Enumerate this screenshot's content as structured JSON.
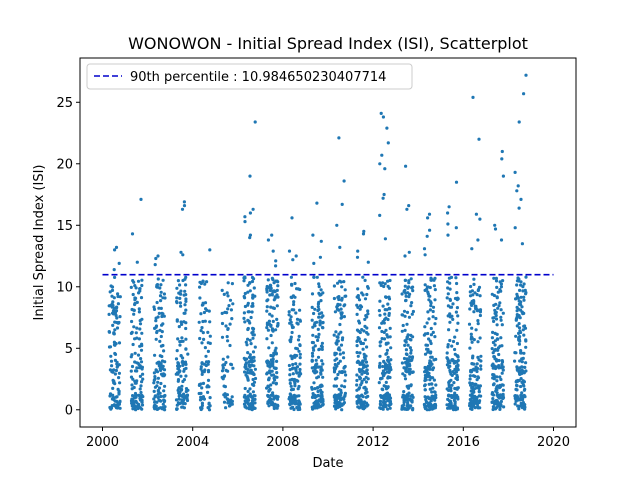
{
  "chart_data": {
    "type": "scatter",
    "title": "WONOWON - Initial Spread Index (ISI), Scatterplot",
    "xlabel": "Date",
    "ylabel": "Initial Spread Index (ISI)",
    "xlim": [
      "2000-01-01",
      "2020-01-01"
    ],
    "ylim": [
      -1.4,
      28.6
    ],
    "x_ticks": [
      "2000",
      "2004",
      "2008",
      "2012",
      "2016",
      "2020"
    ],
    "y_ticks": [
      0,
      5,
      10,
      15,
      20,
      25
    ],
    "grid": false,
    "point_color": "#1f77b4",
    "reference_line": {
      "label": "90th percentile : 10.984650230407714",
      "value": 10.984650230407714,
      "x_range": [
        "2000-01-01",
        "2020-01-01"
      ],
      "color": "#0000cc",
      "style": "dashed"
    },
    "legend": {
      "position": "top-left",
      "entries": [
        "90th percentile : 10.984650230407714"
      ]
    },
    "seasons": [
      {
        "start": "2000-04-15",
        "end": "2000-10-15",
        "n": 110,
        "high": [
          13.2,
          13.0,
          11.9,
          11.4
        ]
      },
      {
        "start": "2001-04-10",
        "end": "2001-10-15",
        "n": 125,
        "high": [
          17.1,
          14.3,
          12.0
        ]
      },
      {
        "start": "2002-04-10",
        "end": "2002-10-15",
        "n": 125,
        "high": [
          12.5,
          12.3,
          11.8
        ]
      },
      {
        "start": "2003-04-10",
        "end": "2003-10-15",
        "n": 120,
        "high": [
          16.9,
          16.6,
          16.3,
          12.8,
          12.6
        ]
      },
      {
        "start": "2004-04-15",
        "end": "2004-10-15",
        "n": 85,
        "high": [
          13.0,
          7.2
        ]
      },
      {
        "start": "2005-04-20",
        "end": "2005-10-15",
        "n": 60,
        "high": [
          8.2,
          7.9
        ]
      },
      {
        "start": "2006-04-10",
        "end": "2006-10-15",
        "n": 155,
        "high": [
          23.4,
          19.0,
          16.3,
          16.0,
          15.7,
          15.3,
          14.2,
          14.0
        ]
      },
      {
        "start": "2007-04-10",
        "end": "2007-10-15",
        "n": 150,
        "high": [
          14.2,
          13.8,
          12.9,
          12.1,
          11.7
        ]
      },
      {
        "start": "2008-04-10",
        "end": "2008-10-15",
        "n": 135,
        "high": [
          15.6,
          12.9,
          12.5,
          12.2
        ]
      },
      {
        "start": "2009-04-10",
        "end": "2009-10-15",
        "n": 150,
        "high": [
          16.8,
          14.2,
          13.7,
          12.4,
          11.9
        ]
      },
      {
        "start": "2010-04-10",
        "end": "2010-10-15",
        "n": 145,
        "high": [
          22.1,
          18.6,
          16.7,
          15.0,
          13.2
        ]
      },
      {
        "start": "2011-04-10",
        "end": "2011-10-15",
        "n": 140,
        "high": [
          14.5,
          14.3,
          12.9,
          12.4,
          12.0
        ]
      },
      {
        "start": "2012-04-10",
        "end": "2012-10-15",
        "n": 155,
        "high": [
          24.1,
          23.8,
          22.9,
          21.7,
          20.7,
          20.0,
          19.6,
          17.5,
          17.2,
          15.8,
          13.9
        ]
      },
      {
        "start": "2013-04-10",
        "end": "2013-10-15",
        "n": 145,
        "high": [
          19.8,
          16.6,
          16.3,
          12.8,
          12.5
        ]
      },
      {
        "start": "2014-04-10",
        "end": "2014-10-15",
        "n": 150,
        "high": [
          15.9,
          15.6,
          14.6,
          14.1,
          13.1,
          12.6
        ]
      },
      {
        "start": "2015-04-10",
        "end": "2015-10-15",
        "n": 150,
        "high": [
          18.5,
          16.5,
          16.0,
          15.1,
          14.8,
          14.2
        ]
      },
      {
        "start": "2016-04-10",
        "end": "2016-10-15",
        "n": 145,
        "high": [
          25.4,
          22.0,
          15.9,
          15.5,
          13.8,
          13.1
        ]
      },
      {
        "start": "2017-04-10",
        "end": "2017-10-15",
        "n": 150,
        "high": [
          21.0,
          20.4,
          19.0,
          15.0,
          14.7,
          13.8
        ]
      },
      {
        "start": "2018-04-10",
        "end": "2018-10-15",
        "n": 150,
        "high": [
          27.2,
          25.7,
          23.4,
          19.3,
          18.2,
          17.8,
          17.1,
          16.4,
          14.8,
          13.5
        ]
      }
    ]
  }
}
